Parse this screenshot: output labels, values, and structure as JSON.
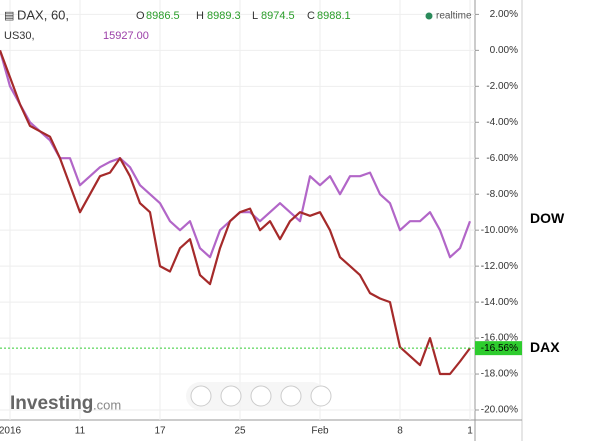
{
  "chart_data": {
    "type": "line",
    "header": {
      "symbol": "DAX, 60,",
      "o_label": "O",
      "o": "8986.5",
      "h_label": "H",
      "h": "8989.3",
      "l_label": "L",
      "l": "8974.5",
      "c_label": "C",
      "c": "8988.1",
      "realtime": "realtime",
      "symbol2": "US30,",
      "price2": "15927.00"
    },
    "categories": [
      null,
      "2016",
      null,
      null,
      null,
      null,
      null,
      null,
      "11",
      null,
      null,
      null,
      null,
      null,
      null,
      null,
      "17",
      null,
      null,
      null,
      null,
      null,
      null,
      null,
      "25",
      null,
      null,
      null,
      null,
      null,
      null,
      null,
      "Feb",
      null,
      null,
      null,
      null,
      null,
      null,
      null,
      "8",
      null,
      null,
      null,
      null,
      null,
      null,
      "1"
    ],
    "series": [
      {
        "name": "DAX",
        "color": "#a52a2a",
        "values": [
          0,
          -1.5,
          -3,
          -4.2,
          -4.5,
          -4.8,
          -6,
          -7.5,
          -9,
          -8,
          -7,
          -6.8,
          -6,
          -7,
          -8.5,
          -9,
          -12,
          -12.3,
          -11,
          -10.5,
          -12.5,
          -13,
          -11,
          -9.5,
          -9,
          -8.8,
          -10,
          -9.5,
          -10.5,
          -9.5,
          -9,
          -9.2,
          -9,
          -10,
          -11.5,
          -12,
          -12.5,
          -13.5,
          -13.8,
          -14,
          -16.5,
          -17,
          -17.5,
          -16,
          -18,
          -18,
          -17.3,
          -16.56
        ],
        "value_labels": [
          null,
          null,
          null,
          null,
          null,
          null,
          null,
          null,
          null,
          null,
          null,
          null,
          null,
          null,
          null,
          null,
          null,
          null,
          null,
          null,
          null,
          null,
          null,
          null,
          null,
          null,
          null,
          null,
          null,
          null,
          null,
          null,
          null,
          null,
          null,
          null,
          null,
          null,
          null,
          null,
          null,
          null,
          null,
          null,
          null,
          null,
          null,
          "-16.56%"
        ]
      },
      {
        "name": "DOW",
        "color": "#b266c8",
        "values": [
          0,
          -2,
          -3,
          -4,
          -4.5,
          -5,
          -6,
          -6,
          -7.5,
          -7,
          -6.5,
          -6.2,
          -6,
          -6.5,
          -7.5,
          -8,
          -8.5,
          -9.5,
          -10,
          -9.5,
          -11,
          -11.5,
          -10,
          -9.5,
          -9,
          -9,
          -9.5,
          -9,
          -8.5,
          -9,
          -9.5,
          -7,
          -7.5,
          -7,
          -8,
          -7,
          -7,
          -6.8,
          -8,
          -8.5,
          -10,
          -9.5,
          -9.5,
          -9,
          -10,
          -11.5,
          -11,
          -9.5
        ]
      }
    ],
    "ylim": [
      -20.5,
      2.8
    ],
    "yticks": [
      {
        "value": 2,
        "label": "2.00%"
      },
      {
        "value": 0,
        "label": "0.00%"
      },
      {
        "value": -2,
        "label": "-2.00%"
      },
      {
        "value": -4,
        "label": "-4.00%"
      },
      {
        "value": -6,
        "label": "-6.00%"
      },
      {
        "value": -8,
        "label": "-8.00%"
      },
      {
        "value": -10,
        "label": "-10.00%"
      },
      {
        "value": -12,
        "label": "-12.00%"
      },
      {
        "value": -14,
        "label": "-14.00%"
      },
      {
        "value": -16,
        "label": "-16.00%"
      },
      {
        "value": -18,
        "label": "-18.00%"
      },
      {
        "value": -20,
        "label": "-20.00%"
      }
    ],
    "grid": true,
    "logo": {
      "brand": "Investing",
      "suffix": ".com"
    }
  }
}
